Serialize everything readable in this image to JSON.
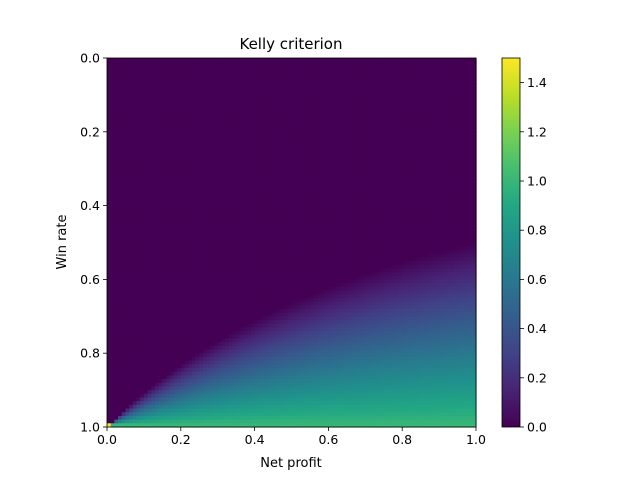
{
  "chart_data": {
    "type": "heatmap",
    "title": "Kelly criterion",
    "xlabel": "Net profit",
    "ylabel": "Win rate",
    "x_range": [
      0.0,
      1.0
    ],
    "y_range": [
      0.0,
      1.0
    ],
    "y_inverted": true,
    "grid": false,
    "resolution": 100,
    "formula": "kelly = clip(p - (1 - p) / b, 0, 1.5)",
    "x_ticks": [
      "0.0",
      "0.2",
      "0.4",
      "0.6",
      "0.8",
      "1.0"
    ],
    "x_tick_values": [
      0.0,
      0.2,
      0.4,
      0.6,
      0.8,
      1.0
    ],
    "y_ticks": [
      "0.0",
      "0.2",
      "0.4",
      "0.6",
      "0.8",
      "1.0"
    ],
    "y_tick_values": [
      0.0,
      0.2,
      0.4,
      0.6,
      0.8,
      1.0
    ],
    "colormap": "viridis",
    "colorbar": {
      "range": [
        0.0,
        1.5
      ],
      "ticks": [
        "0.0",
        "0.2",
        "0.4",
        "0.6",
        "0.8",
        "1.0",
        "1.2",
        "1.4"
      ],
      "tick_values": [
        0.0,
        0.2,
        0.4,
        0.6,
        0.8,
        1.0,
        1.2,
        1.4
      ],
      "placement": "right"
    }
  }
}
